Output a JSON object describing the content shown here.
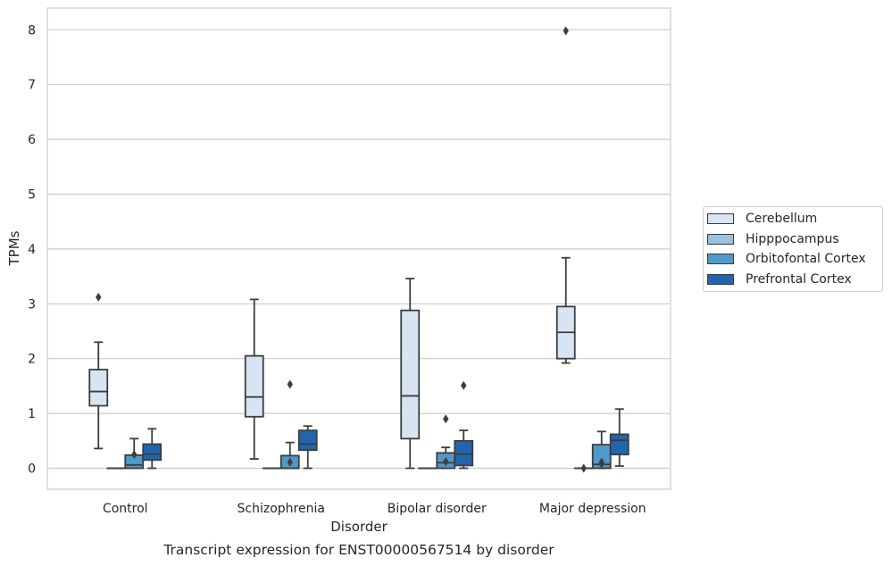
{
  "chart_data": {
    "type": "box",
    "title": "Transcript expression for ENST00000567514 by disorder",
    "xlabel": "Disorder",
    "ylabel": "TPMs",
    "ylim": [
      -0.4,
      8.4
    ],
    "yticks": [
      0,
      1,
      2,
      3,
      4,
      5,
      6,
      7,
      8
    ],
    "grid": true,
    "legend_position": "right",
    "categories": [
      "Control",
      "Schizophrenia",
      "Bipolar disorder",
      "Major depression"
    ],
    "series": [
      {
        "name": "Cerebellum",
        "color": "#d6e4f3",
        "boxes": [
          {
            "whisker_low": 0.36,
            "q1": 1.14,
            "median": 1.4,
            "q3": 1.8,
            "whisker_high": 2.3,
            "outliers": [
              3.12
            ]
          },
          {
            "whisker_low": 0.17,
            "q1": 0.94,
            "median": 1.3,
            "q3": 2.05,
            "whisker_high": 3.08,
            "outliers": []
          },
          {
            "whisker_low": 0.0,
            "q1": 0.54,
            "median": 1.32,
            "q3": 2.88,
            "whisker_high": 3.46,
            "outliers": []
          },
          {
            "whisker_low": 1.92,
            "q1": 2.0,
            "median": 2.48,
            "q3": 2.95,
            "whisker_high": 3.84,
            "outliers": [
              7.98
            ]
          }
        ]
      },
      {
        "name": "Hipppocampus",
        "color": "#9ac3df",
        "boxes": [
          {
            "whisker_low": 0.0,
            "q1": 0.0,
            "median": 0.0,
            "q3": 0.0,
            "whisker_high": 0.0,
            "outliers": []
          },
          {
            "whisker_low": 0.0,
            "q1": 0.0,
            "median": 0.0,
            "q3": 0.0,
            "whisker_high": 0.0,
            "outliers": []
          },
          {
            "whisker_low": 0.0,
            "q1": 0.0,
            "median": 0.0,
            "q3": 0.0,
            "whisker_high": 0.0,
            "outliers": []
          },
          {
            "whisker_low": 0.0,
            "q1": 0.0,
            "median": 0.0,
            "q3": 0.0,
            "whisker_high": 0.0,
            "outliers": [
              0.0
            ]
          }
        ]
      },
      {
        "name": "Orbitofontal Cortex",
        "color": "#5299cb",
        "boxes": [
          {
            "whisker_low": 0.0,
            "q1": 0.0,
            "median": 0.06,
            "q3": 0.24,
            "whisker_high": 0.54,
            "outliers": [
              0.25
            ]
          },
          {
            "whisker_low": 0.0,
            "q1": 0.0,
            "median": 0.0,
            "q3": 0.23,
            "whisker_high": 0.47,
            "outliers": [
              0.11,
              1.53
            ]
          },
          {
            "whisker_low": 0.0,
            "q1": 0.0,
            "median": 0.1,
            "q3": 0.28,
            "whisker_high": 0.38,
            "outliers": [
              0.12,
              0.9
            ]
          },
          {
            "whisker_low": 0.0,
            "q1": 0.0,
            "median": 0.07,
            "q3": 0.43,
            "whisker_high": 0.67,
            "outliers": [
              0.08,
              0.11
            ]
          }
        ]
      },
      {
        "name": "Prefrontal Cortex",
        "color": "#2166ac",
        "boxes": [
          {
            "whisker_low": 0.0,
            "q1": 0.15,
            "median": 0.26,
            "q3": 0.44,
            "whisker_high": 0.72,
            "outliers": []
          },
          {
            "whisker_low": 0.0,
            "q1": 0.33,
            "median": 0.44,
            "q3": 0.69,
            "whisker_high": 0.77,
            "outliers": []
          },
          {
            "whisker_low": 0.0,
            "q1": 0.05,
            "median": 0.26,
            "q3": 0.5,
            "whisker_high": 0.69,
            "outliers": [
              1.51
            ]
          },
          {
            "whisker_low": 0.04,
            "q1": 0.25,
            "median": 0.51,
            "q3": 0.62,
            "whisker_high": 1.08,
            "outliers": []
          }
        ]
      }
    ]
  }
}
